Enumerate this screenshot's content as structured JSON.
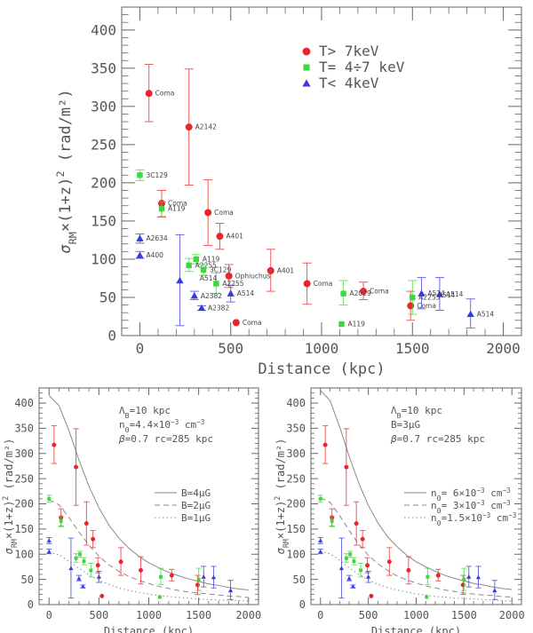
{
  "chart_data": [
    {
      "type": "scatter",
      "panel": "top",
      "xlabel": "Distance (kpc)",
      "ylabel": "σ_RM×(1+z)² (rad/m²)",
      "ylabel_parts": {
        "sigma": "σ",
        "sub": "RM",
        "rest": "×(1+z)",
        "sup": "2",
        "units": " (rad/m²)"
      },
      "xlim": [
        -100,
        2100
      ],
      "ylim": [
        0,
        430
      ],
      "xticks": [
        0,
        500,
        1000,
        1500,
        2000
      ],
      "yticks": [
        0,
        50,
        100,
        150,
        200,
        250,
        300,
        350,
        400
      ],
      "legend": [
        {
          "label": "T> 7keV",
          "color": "#e8262b",
          "marker": "circle"
        },
        {
          "label": "T= 4÷7 keV",
          "color": "#3ed83e",
          "marker": "square"
        },
        {
          "label": "T< 4keV",
          "color": "#3a3ad8",
          "marker": "triangle"
        }
      ],
      "series": [
        {
          "name": "T> 7keV",
          "color": "#e8262b",
          "marker": "circle",
          "points": [
            {
              "x": 50,
              "y": 317,
              "lo": 280,
              "hi": 355,
              "label": "Coma"
            },
            {
              "x": 270,
              "y": 273,
              "lo": 197,
              "hi": 349,
              "label": "A2142"
            },
            {
              "x": 120,
              "y": 173,
              "lo": 155,
              "hi": 190,
              "label": "Coma"
            },
            {
              "x": 375,
              "y": 161,
              "lo": 118,
              "hi": 204,
              "label": "Coma"
            },
            {
              "x": 440,
              "y": 130,
              "lo": 113,
              "hi": 147,
              "label": "A401"
            },
            {
              "x": 490,
              "y": 78,
              "lo": 63,
              "hi": 93,
              "label": "Ophiuchus"
            },
            {
              "x": 720,
              "y": 85,
              "lo": 58,
              "hi": 113,
              "label": "A401"
            },
            {
              "x": 920,
              "y": 68,
              "lo": 41,
              "hi": 95,
              "label": "Coma"
            },
            {
              "x": 1230,
              "y": 58,
              "lo": 47,
              "hi": 70,
              "label": "Coma"
            },
            {
              "x": 1490,
              "y": 39,
              "lo": 20,
              "hi": 58,
              "label": "Coma"
            },
            {
              "x": 530,
              "y": 17,
              "lo": 17,
              "hi": 17,
              "label": "Coma"
            }
          ]
        },
        {
          "name": "T= 4÷7 keV",
          "color": "#3ed83e",
          "marker": "square",
          "points": [
            {
              "x": 0,
              "y": 210,
              "lo": 203,
              "hi": 217,
              "label": "3C129"
            },
            {
              "x": 120,
              "y": 166,
              "lo": 156,
              "hi": 175,
              "label": "A119"
            },
            {
              "x": 310,
              "y": 100,
              "lo": 94,
              "hi": 106,
              "label": "A119"
            },
            {
              "x": 270,
              "y": 92,
              "lo": 84,
              "hi": 101,
              "label": "A2255"
            },
            {
              "x": 350,
              "y": 86,
              "lo": 79,
              "hi": 93,
              "label": "3C129"
            },
            {
              "x": 420,
              "y": 68,
              "lo": 55,
              "hi": 82,
              "label": "A2255"
            },
            {
              "x": 1120,
              "y": 55,
              "lo": 40,
              "hi": 72,
              "label": "A2029"
            },
            {
              "x": 1500,
              "y": 50,
              "lo": 28,
              "hi": 72,
              "label": "A2255"
            },
            {
              "x": 1110,
              "y": 15,
              "lo": 15,
              "hi": 15,
              "label": "A119"
            }
          ]
        },
        {
          "name": "T< 4keV",
          "color": "#3a3ad8",
          "marker": "triangle",
          "points": [
            {
              "x": 0,
              "y": 127,
              "lo": 121,
              "hi": 133,
              "label": "A2634"
            },
            {
              "x": 0,
              "y": 105,
              "lo": 101,
              "hi": 110,
              "label": "A400"
            },
            {
              "x": 220,
              "y": 72,
              "lo": 13,
              "hi": 132,
              "label": ""
            },
            {
              "x": 300,
              "y": 52,
              "lo": 47,
              "hi": 58,
              "label": "A2382"
            },
            {
              "x": 340,
              "y": 36,
              "lo": 33,
              "hi": 39,
              "label": "A2382"
            },
            {
              "x": 500,
              "y": 55,
              "lo": 44,
              "hi": 66,
              "label": "A514"
            },
            {
              "x": 1550,
              "y": 55,
              "lo": 35,
              "hi": 76,
              "label": "A514"
            },
            {
              "x": 1650,
              "y": 54,
              "lo": 33,
              "hi": 76,
              "label": "A514"
            },
            {
              "x": 1820,
              "y": 28,
              "lo": 10,
              "hi": 48,
              "label": "A514"
            }
          ]
        }
      ],
      "extra_labels": [
        {
          "text": "A514",
          "x": 310,
          "y": 75
        },
        {
          "text": "A514",
          "x": 1620,
          "y": 53
        }
      ]
    },
    {
      "type": "scatter",
      "panel": "bottom-left",
      "xlabel": "Distance (kpc)",
      "ylabel": "σ_RM×(1+z)² (rad/m²)",
      "xlim": [
        -100,
        2100
      ],
      "ylim": [
        0,
        430
      ],
      "xticks": [
        0,
        500,
        1000,
        1500,
        2000
      ],
      "yticks": [
        0,
        50,
        100,
        150,
        200,
        250,
        300,
        350,
        400
      ],
      "annotations": [
        "Λ_B=10 kpc",
        "n_0=4.4×10^-3 cm^-3",
        "β=0.7  rc=285 kpc"
      ],
      "annotation_text": [
        {
          "pre": "Λ",
          "sub": "B",
          "post": "=10 kpc"
        },
        {
          "pre": "n",
          "sub": "0",
          "post": "=4.4×10",
          "sup": "−3",
          "post2": " cm",
          "sup2": "−3"
        },
        {
          "pre": "β",
          "sub": "",
          "post": "=0.7   rc=285 kpc"
        }
      ],
      "model_curves": [
        {
          "name": "B=4μG",
          "style": "solid",
          "x": [
            0,
            100,
            200,
            300,
            400,
            500,
            600,
            700,
            800,
            900,
            1000,
            1100,
            1200,
            1300,
            1400,
            1500,
            1600,
            1700,
            1800,
            1900,
            2000
          ],
          "y": [
            415,
            395,
            345,
            287,
            235,
            192,
            158,
            132,
            112,
            96,
            83,
            73,
            64,
            57,
            51,
            46,
            41,
            38,
            34,
            31,
            29
          ]
        },
        {
          "name": "B=2μG",
          "style": "dashed",
          "x": [
            0,
            100,
            200,
            300,
            400,
            500,
            600,
            700,
            800,
            900,
            1000,
            1100,
            1200,
            1300,
            1400,
            1500,
            1600,
            1700,
            1800,
            1900,
            2000
          ],
          "y": [
            208,
            198,
            173,
            144,
            118,
            96,
            79,
            66,
            56,
            48,
            42,
            36,
            32,
            28,
            25,
            23,
            21,
            19,
            17,
            16,
            14
          ]
        },
        {
          "name": "B=1μG",
          "style": "dotted",
          "x": [
            0,
            100,
            200,
            300,
            400,
            500,
            600,
            700,
            800,
            900,
            1000,
            1100,
            1200,
            1300,
            1400,
            1500,
            1600,
            1700,
            1800,
            1900,
            2000
          ],
          "y": [
            104,
            99,
            86,
            72,
            59,
            48,
            40,
            33,
            28,
            24,
            21,
            18,
            16,
            14,
            13,
            11,
            10,
            9,
            9,
            8,
            7
          ]
        }
      ],
      "legend_labels": [
        {
          "pre": "B=4",
          "mid": "μ",
          "post": "G"
        },
        {
          "pre": "B=2",
          "mid": "μ",
          "post": "G"
        },
        {
          "pre": "B=1",
          "mid": "μ",
          "post": "G"
        }
      ]
    },
    {
      "type": "scatter",
      "panel": "bottom-right",
      "xlabel": "Distance (kpc)",
      "ylabel": "σ_RM×(1+z)² (rad/m²)",
      "xlim": [
        -100,
        2100
      ],
      "ylim": [
        0,
        430
      ],
      "xticks": [
        0,
        500,
        1000,
        1500,
        2000
      ],
      "yticks": [
        0,
        50,
        100,
        150,
        200,
        250,
        300,
        350,
        400
      ],
      "annotations": [
        "Λ_B=10 kpc",
        "B=3μG",
        "β=0.7  rc=285 kpc"
      ],
      "annotation_text": [
        {
          "pre": "Λ",
          "sub": "B",
          "post": "=10 kpc"
        },
        {
          "pre": "B=3",
          "sub": "",
          "post": "μG"
        },
        {
          "pre": "β",
          "sub": "",
          "post": "=0.7   rc=285 kpc"
        }
      ],
      "model_curves": [
        {
          "name": "n0=6×10^-3 cm^-3",
          "style": "solid",
          "x": [
            0,
            100,
            200,
            300,
            400,
            500,
            600,
            700,
            800,
            900,
            1000,
            1100,
            1200,
            1300,
            1400,
            1500,
            1600,
            1700,
            1800,
            1900,
            2000
          ],
          "y": [
            425,
            405,
            353,
            294,
            241,
            197,
            162,
            135,
            115,
            98,
            85,
            75,
            66,
            58,
            52,
            47,
            42,
            39,
            35,
            32,
            30
          ]
        },
        {
          "name": "n0=3×10^-3 cm^-3",
          "style": "dashed",
          "x": [
            0,
            100,
            200,
            300,
            400,
            500,
            600,
            700,
            800,
            900,
            1000,
            1100,
            1200,
            1300,
            1400,
            1500,
            1600,
            1700,
            1800,
            1900,
            2000
          ],
          "y": [
            212,
            203,
            177,
            147,
            120,
            98,
            81,
            68,
            57,
            49,
            43,
            37,
            33,
            29,
            26,
            23,
            21,
            19,
            18,
            16,
            15
          ]
        },
        {
          "name": "n0=1.5×10^-3 cm^-3",
          "style": "dotted",
          "x": [
            0,
            100,
            200,
            300,
            400,
            500,
            600,
            700,
            800,
            900,
            1000,
            1100,
            1200,
            1300,
            1400,
            1500,
            1600,
            1700,
            1800,
            1900,
            2000
          ],
          "y": [
            106,
            101,
            88,
            73,
            60,
            49,
            40,
            34,
            29,
            25,
            21,
            19,
            16,
            15,
            13,
            12,
            11,
            10,
            9,
            8,
            7
          ]
        }
      ],
      "legend_labels": [
        {
          "pre": "n",
          "sub": "0",
          "mid": "=  6×10",
          "sup": "−3",
          "post": " cm",
          "sup2": "−3"
        },
        {
          "pre": "n",
          "sub": "0",
          "mid": "=  3×10",
          "sup": "−3",
          "post": " cm",
          "sup2": "−3"
        },
        {
          "pre": "n",
          "sub": "0",
          "mid": "=1.5×10",
          "sup": "−3",
          "post": " cm",
          "sup2": "−3"
        }
      ]
    }
  ]
}
